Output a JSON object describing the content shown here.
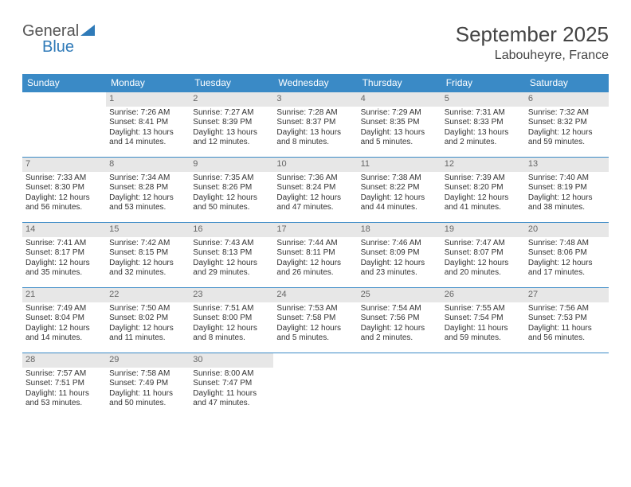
{
  "logo": {
    "part1": "General",
    "part2": "Blue"
  },
  "title": "September 2025",
  "location": "Labouheyre, France",
  "header_bg": "#3a8ac6",
  "daynum_bg": "#e7e7e7",
  "weekdays": [
    "Sunday",
    "Monday",
    "Tuesday",
    "Wednesday",
    "Thursday",
    "Friday",
    "Saturday"
  ],
  "weeks": [
    [
      null,
      {
        "n": "1",
        "sunrise": "Sunrise: 7:26 AM",
        "sunset": "Sunset: 8:41 PM",
        "daylight": "Daylight: 13 hours and 14 minutes."
      },
      {
        "n": "2",
        "sunrise": "Sunrise: 7:27 AM",
        "sunset": "Sunset: 8:39 PM",
        "daylight": "Daylight: 13 hours and 12 minutes."
      },
      {
        "n": "3",
        "sunrise": "Sunrise: 7:28 AM",
        "sunset": "Sunset: 8:37 PM",
        "daylight": "Daylight: 13 hours and 8 minutes."
      },
      {
        "n": "4",
        "sunrise": "Sunrise: 7:29 AM",
        "sunset": "Sunset: 8:35 PM",
        "daylight": "Daylight: 13 hours and 5 minutes."
      },
      {
        "n": "5",
        "sunrise": "Sunrise: 7:31 AM",
        "sunset": "Sunset: 8:33 PM",
        "daylight": "Daylight: 13 hours and 2 minutes."
      },
      {
        "n": "6",
        "sunrise": "Sunrise: 7:32 AM",
        "sunset": "Sunset: 8:32 PM",
        "daylight": "Daylight: 12 hours and 59 minutes."
      }
    ],
    [
      {
        "n": "7",
        "sunrise": "Sunrise: 7:33 AM",
        "sunset": "Sunset: 8:30 PM",
        "daylight": "Daylight: 12 hours and 56 minutes."
      },
      {
        "n": "8",
        "sunrise": "Sunrise: 7:34 AM",
        "sunset": "Sunset: 8:28 PM",
        "daylight": "Daylight: 12 hours and 53 minutes."
      },
      {
        "n": "9",
        "sunrise": "Sunrise: 7:35 AM",
        "sunset": "Sunset: 8:26 PM",
        "daylight": "Daylight: 12 hours and 50 minutes."
      },
      {
        "n": "10",
        "sunrise": "Sunrise: 7:36 AM",
        "sunset": "Sunset: 8:24 PM",
        "daylight": "Daylight: 12 hours and 47 minutes."
      },
      {
        "n": "11",
        "sunrise": "Sunrise: 7:38 AM",
        "sunset": "Sunset: 8:22 PM",
        "daylight": "Daylight: 12 hours and 44 minutes."
      },
      {
        "n": "12",
        "sunrise": "Sunrise: 7:39 AM",
        "sunset": "Sunset: 8:20 PM",
        "daylight": "Daylight: 12 hours and 41 minutes."
      },
      {
        "n": "13",
        "sunrise": "Sunrise: 7:40 AM",
        "sunset": "Sunset: 8:19 PM",
        "daylight": "Daylight: 12 hours and 38 minutes."
      }
    ],
    [
      {
        "n": "14",
        "sunrise": "Sunrise: 7:41 AM",
        "sunset": "Sunset: 8:17 PM",
        "daylight": "Daylight: 12 hours and 35 minutes."
      },
      {
        "n": "15",
        "sunrise": "Sunrise: 7:42 AM",
        "sunset": "Sunset: 8:15 PM",
        "daylight": "Daylight: 12 hours and 32 minutes."
      },
      {
        "n": "16",
        "sunrise": "Sunrise: 7:43 AM",
        "sunset": "Sunset: 8:13 PM",
        "daylight": "Daylight: 12 hours and 29 minutes."
      },
      {
        "n": "17",
        "sunrise": "Sunrise: 7:44 AM",
        "sunset": "Sunset: 8:11 PM",
        "daylight": "Daylight: 12 hours and 26 minutes."
      },
      {
        "n": "18",
        "sunrise": "Sunrise: 7:46 AM",
        "sunset": "Sunset: 8:09 PM",
        "daylight": "Daylight: 12 hours and 23 minutes."
      },
      {
        "n": "19",
        "sunrise": "Sunrise: 7:47 AM",
        "sunset": "Sunset: 8:07 PM",
        "daylight": "Daylight: 12 hours and 20 minutes."
      },
      {
        "n": "20",
        "sunrise": "Sunrise: 7:48 AM",
        "sunset": "Sunset: 8:06 PM",
        "daylight": "Daylight: 12 hours and 17 minutes."
      }
    ],
    [
      {
        "n": "21",
        "sunrise": "Sunrise: 7:49 AM",
        "sunset": "Sunset: 8:04 PM",
        "daylight": "Daylight: 12 hours and 14 minutes."
      },
      {
        "n": "22",
        "sunrise": "Sunrise: 7:50 AM",
        "sunset": "Sunset: 8:02 PM",
        "daylight": "Daylight: 12 hours and 11 minutes."
      },
      {
        "n": "23",
        "sunrise": "Sunrise: 7:51 AM",
        "sunset": "Sunset: 8:00 PM",
        "daylight": "Daylight: 12 hours and 8 minutes."
      },
      {
        "n": "24",
        "sunrise": "Sunrise: 7:53 AM",
        "sunset": "Sunset: 7:58 PM",
        "daylight": "Daylight: 12 hours and 5 minutes."
      },
      {
        "n": "25",
        "sunrise": "Sunrise: 7:54 AM",
        "sunset": "Sunset: 7:56 PM",
        "daylight": "Daylight: 12 hours and 2 minutes."
      },
      {
        "n": "26",
        "sunrise": "Sunrise: 7:55 AM",
        "sunset": "Sunset: 7:54 PM",
        "daylight": "Daylight: 11 hours and 59 minutes."
      },
      {
        "n": "27",
        "sunrise": "Sunrise: 7:56 AM",
        "sunset": "Sunset: 7:53 PM",
        "daylight": "Daylight: 11 hours and 56 minutes."
      }
    ],
    [
      {
        "n": "28",
        "sunrise": "Sunrise: 7:57 AM",
        "sunset": "Sunset: 7:51 PM",
        "daylight": "Daylight: 11 hours and 53 minutes."
      },
      {
        "n": "29",
        "sunrise": "Sunrise: 7:58 AM",
        "sunset": "Sunset: 7:49 PM",
        "daylight": "Daylight: 11 hours and 50 minutes."
      },
      {
        "n": "30",
        "sunrise": "Sunrise: 8:00 AM",
        "sunset": "Sunset: 7:47 PM",
        "daylight": "Daylight: 11 hours and 47 minutes."
      },
      null,
      null,
      null,
      null
    ]
  ]
}
